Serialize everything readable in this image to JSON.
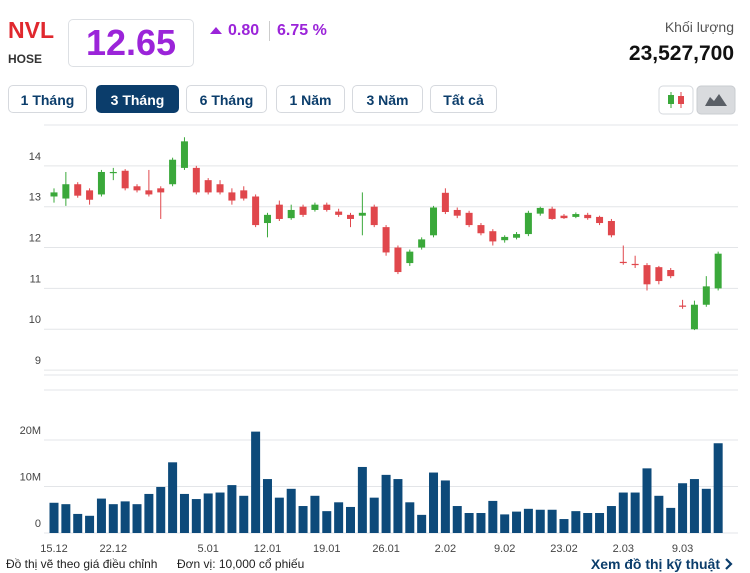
{
  "header": {
    "ticker": "NVL",
    "exchange": "HOSE",
    "price": 12.65,
    "change": "0.80",
    "change_percent": "6.75 %",
    "volume_label": "Khối lượng",
    "volume": "23,527,700"
  },
  "tabs": [
    "1 Tháng",
    "3 Tháng",
    "6 Tháng",
    "1 Năm",
    "3 Năm",
    "Tất cả"
  ],
  "active_tab": 1,
  "footer": {
    "note": "Đồ thị vẽ theo giá điều chỉnh",
    "unit": "Đơn vị: 10,000 cổ phiếu",
    "link": "Xem đồ thị kỹ thuật"
  },
  "chart_data": [
    {
      "type": "candlestick",
      "up_color": "#3aa83a",
      "down_color": "#e0474c",
      "grid": true,
      "ylim": [
        8.88,
        15.0
      ],
      "yticks": [
        9,
        10,
        11,
        12,
        13,
        14
      ],
      "open": [
        13.25,
        13.2,
        13.55,
        13.4,
        13.3,
        13.85,
        13.88,
        13.5,
        13.4,
        13.45,
        13.55,
        13.95,
        13.95,
        13.65,
        13.55,
        13.35,
        13.4,
        13.25,
        12.6,
        13.05,
        12.72,
        13.0,
        12.92,
        13.05,
        12.88,
        12.8,
        12.78,
        13.0,
        12.5,
        12.0,
        11.62,
        12.0,
        12.3,
        13.34,
        12.92,
        12.85,
        12.55,
        12.4,
        12.18,
        12.24,
        12.33,
        12.83,
        12.95,
        12.78,
        12.75,
        12.8,
        12.75,
        12.65,
        11.65,
        11.6,
        11.57,
        11.52,
        11.45,
        10.58,
        10.0,
        10.6,
        11.0
      ],
      "high": [
        13.45,
        13.85,
        13.6,
        13.45,
        13.9,
        13.95,
        13.92,
        13.55,
        13.9,
        13.5,
        14.2,
        14.7,
        14.0,
        13.7,
        13.65,
        13.45,
        13.5,
        13.3,
        12.85,
        13.15,
        13.05,
        13.05,
        13.1,
        13.1,
        12.95,
        12.85,
        13.35,
        13.05,
        12.55,
        12.05,
        11.95,
        12.25,
        13.02,
        13.45,
        12.98,
        12.9,
        12.6,
        12.45,
        12.3,
        12.38,
        12.9,
        13.0,
        13.0,
        12.82,
        12.86,
        12.85,
        12.78,
        12.7,
        12.05,
        11.8,
        11.62,
        11.55,
        11.5,
        10.72,
        10.7,
        11.3,
        11.9
      ],
      "low": [
        13.1,
        13.02,
        13.22,
        13.05,
        13.25,
        13.65,
        13.4,
        13.35,
        13.25,
        12.7,
        13.5,
        13.9,
        13.3,
        13.3,
        13.3,
        13.05,
        13.15,
        12.5,
        12.25,
        12.65,
        12.68,
        12.75,
        12.88,
        12.88,
        12.75,
        12.5,
        12.3,
        12.5,
        11.8,
        11.35,
        11.55,
        11.95,
        12.25,
        12.82,
        12.72,
        12.5,
        12.3,
        12.05,
        12.12,
        12.2,
        12.28,
        12.78,
        12.68,
        12.7,
        12.72,
        12.68,
        12.55,
        12.25,
        11.58,
        11.5,
        10.95,
        11.1,
        11.25,
        10.5,
        9.98,
        10.55,
        10.95
      ],
      "close": [
        13.35,
        13.55,
        13.27,
        13.17,
        13.85,
        13.85,
        13.45,
        13.4,
        13.3,
        13.35,
        14.15,
        14.6,
        13.35,
        13.35,
        13.35,
        13.15,
        13.2,
        12.55,
        12.8,
        12.7,
        12.92,
        12.8,
        13.05,
        12.92,
        12.8,
        12.7,
        12.85,
        12.55,
        11.88,
        11.4,
        11.9,
        12.2,
        12.98,
        12.87,
        12.78,
        12.55,
        12.35,
        12.15,
        12.26,
        12.33,
        12.85,
        12.97,
        12.7,
        12.72,
        12.82,
        12.72,
        12.6,
        12.3,
        11.62,
        11.57,
        11.1,
        11.18,
        11.3,
        10.55,
        10.6,
        11.05,
        11.85
      ]
    },
    {
      "type": "bar",
      "color": "#0d4a7a",
      "grid": true,
      "ylim": [
        0,
        30750000
      ],
      "yticks": [
        0,
        {
          "value": 10000000,
          "label": "10M"
        },
        {
          "value": 20000000,
          "label": "20M"
        }
      ],
      "categories": [
        "15.12",
        null,
        null,
        null,
        null,
        "22.12",
        null,
        null,
        null,
        null,
        null,
        null,
        null,
        "5.01",
        null,
        null,
        null,
        null,
        "12.01",
        null,
        null,
        null,
        null,
        "19.01",
        null,
        null,
        null,
        null,
        "26.01",
        null,
        null,
        null,
        null,
        "2.02",
        null,
        null,
        null,
        null,
        "9.02",
        null,
        null,
        null,
        null,
        "23.02",
        null,
        null,
        null,
        null,
        "2.03",
        null,
        null,
        null,
        null,
        "9.03",
        null,
        null,
        null
      ],
      "values": [
        6500000,
        6200000,
        4100000,
        3700000,
        7400000,
        6200000,
        6800000,
        6200000,
        8400000,
        9900000,
        15200000,
        8400000,
        7300000,
        8500000,
        8700000,
        10300000,
        8000000,
        21800000,
        11600000,
        7600000,
        9500000,
        5800000,
        8000000,
        4700000,
        6600000,
        5600000,
        14200000,
        7600000,
        12500000,
        11600000,
        6600000,
        3900000,
        13000000,
        11300000,
        5800000,
        4300000,
        4300000,
        6900000,
        4000000,
        4600000,
        5200000,
        5000000,
        5000000,
        3000000,
        4700000,
        4300000,
        4300000,
        5800000,
        8700000,
        8700000,
        13900000,
        8000000,
        5400000,
        10700000,
        11600000,
        9500000,
        19300000
      ]
    }
  ]
}
